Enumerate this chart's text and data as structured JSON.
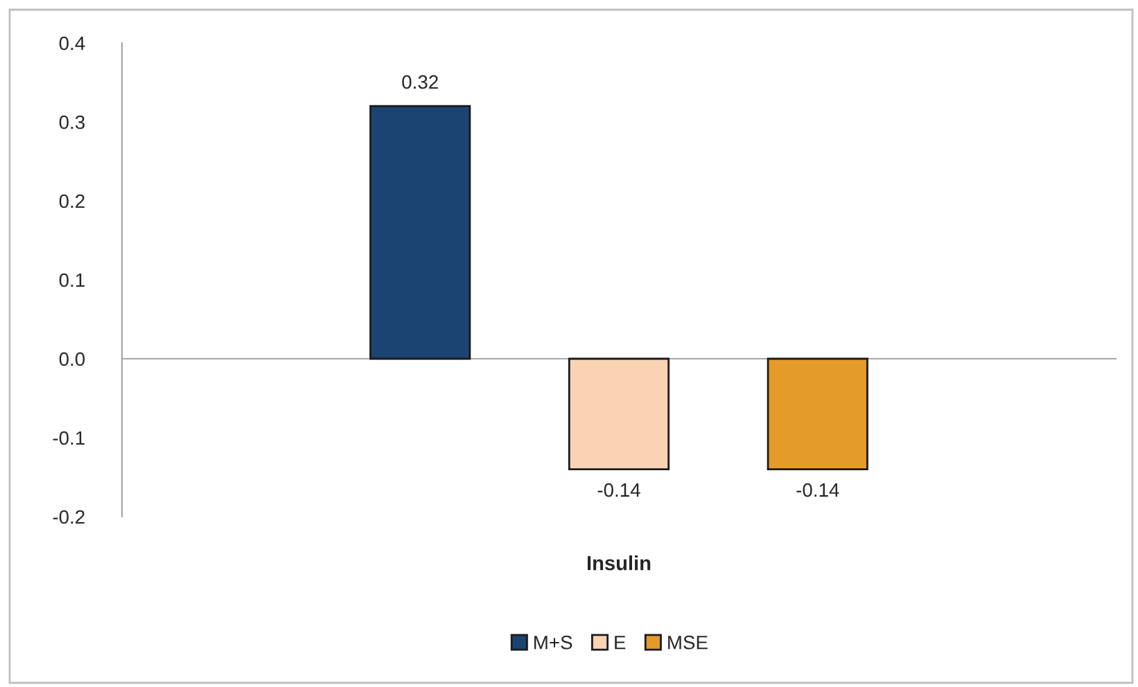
{
  "chart_data": {
    "type": "bar",
    "categories": [
      null
    ],
    "xlabel": "Insulin",
    "series": [
      {
        "name": "M+S",
        "color": "#1b4472",
        "values": [
          0.32
        ]
      },
      {
        "name": "E",
        "color": "#f9d3b4",
        "values": [
          -0.14
        ]
      },
      {
        "name": "MSE",
        "color": "#e49b2a",
        "values": [
          -0.14
        ]
      }
    ],
    "ylim": [
      -0.2,
      0.4
    ],
    "yticks": [
      -0.2,
      -0.1,
      {
        "value": 0,
        "label": "0.0"
      },
      0.1,
      0.2,
      0.3,
      0.4
    ],
    "legend": "bottom",
    "data_labels": true
  }
}
